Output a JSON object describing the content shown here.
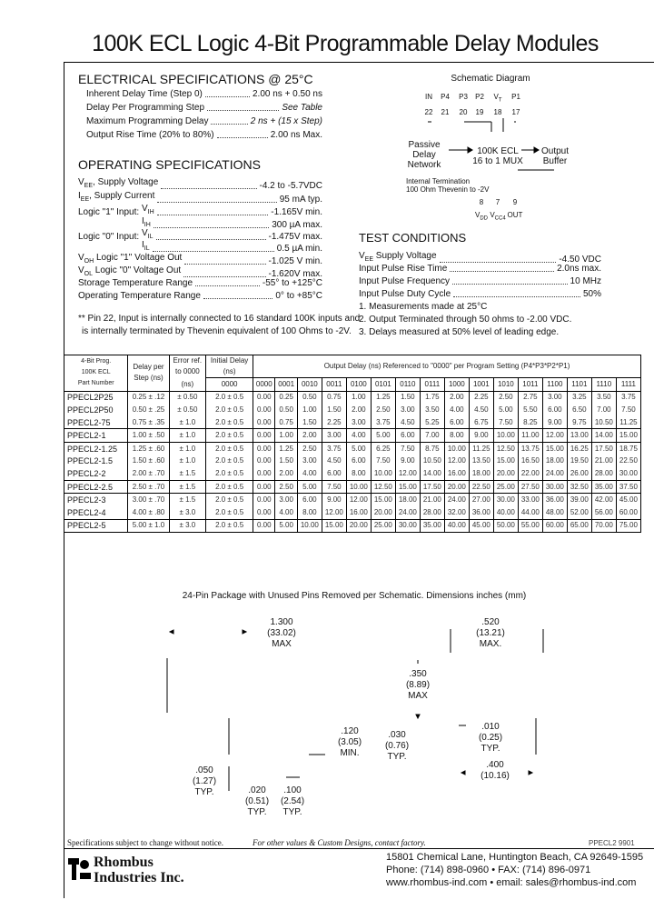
{
  "title": "100K ECL Logic 4-Bit Programmable Delay Modules",
  "electrical": {
    "heading": "ELECTRICAL SPECIFICATIONS @ 25°C",
    "items": [
      {
        "label": "Inherent Delay Time (Step 0)",
        "value": "2.00 ns + 0.50 ns"
      },
      {
        "label": "Delay Per Programming Step",
        "value": "See Table"
      },
      {
        "label": "Maximum Programming Delay",
        "value": "2 ns  + (15 x Step)"
      },
      {
        "label": "Output Rise Time (20% to 80%)",
        "value": "2.00 ns Max."
      }
    ]
  },
  "operating": {
    "heading": "OPERATING SPECIFICATIONS",
    "items": [
      {
        "label": "V",
        "sub": "EE",
        "label2": ", Supply Voltage",
        "value": "-4.2 to  -5.7VDC"
      },
      {
        "label": "I",
        "sub": "EE",
        "label2": ", Supply Current",
        "value": "95 mA typ."
      },
      {
        "label": "Logic \"1\" Input:",
        "param": "V",
        "psub": "IH",
        "value": "-1.165V min."
      },
      {
        "label": "",
        "param": "I",
        "psub": "IH",
        "value": "300 µA max."
      },
      {
        "label": "Logic \"0\" Input:",
        "param": "V",
        "psub": "IL",
        "value": "-1.475V max."
      },
      {
        "label": "",
        "param": "I",
        "psub": "IL",
        "value": "0.5 µA min."
      },
      {
        "label": "V",
        "sub": "OH",
        "label2": " Logic \"1\" Voltage Out",
        "value": "-1.025 V min."
      },
      {
        "label": "V",
        "sub": "OL",
        "label2": " Logic \"0\" Voltage Out",
        "value": "-1.620V max."
      },
      {
        "label": "Storage Temperature Range",
        "value": "-55° to +125°C"
      },
      {
        "label": "Operating Temperature Range",
        "value": "0° to +85°C"
      }
    ],
    "footnote1": "** Pin 22, Input is internally connected to 16 standard 100K inputs and",
    "footnote2": "is internally terminated by Thevenin equivalent of 100 Ohms to -2V."
  },
  "schematic": {
    "title": "Schematic Diagram",
    "top_pins": [
      {
        "name": "IN",
        "num": "22"
      },
      {
        "name": "P4",
        "num": "21"
      },
      {
        "name": "P3",
        "num": "20"
      },
      {
        "name": "P2",
        "num": "19"
      },
      {
        "name": "V",
        "sub": "T",
        "num": "18"
      },
      {
        "name": "P1",
        "num": "17"
      }
    ],
    "passive": [
      "Passive",
      "Delay",
      "Network"
    ],
    "mux": [
      "100K ECL",
      "16 to 1 MUX"
    ],
    "buffer": [
      "Output",
      "Buffer"
    ],
    "termination": [
      "Internal Termination",
      "100 Ohm Thevenin to -2V"
    ],
    "bottom_pins": [
      {
        "name": "V",
        "sub": "DD",
        "num": "8"
      },
      {
        "name": "V",
        "sub": "CC4",
        "num": "7"
      },
      {
        "name": "OUT",
        "num": "9"
      }
    ]
  },
  "test": {
    "heading": "TEST CONDITIONS",
    "items": [
      {
        "label": "V",
        "sub": "EE",
        "label2": "  Supply Voltage",
        "value": "-4.50 VDC"
      },
      {
        "label": "Input Pulse Rise Time",
        "value": "2.0ns max."
      },
      {
        "label": "Input Pulse Frequency",
        "value": "10 MHz"
      },
      {
        "label": "Input Pulse Duty Cycle",
        "value": "50%"
      }
    ],
    "notes": [
      "1.  Measurements made at 25°C",
      "2.  Output Terminated through 50 ohms to -2.00 VDC.",
      "3.  Delays measured at 50% level of leading edge."
    ]
  },
  "table": {
    "h_part": [
      "4-Bit Prog.",
      "100K ECL",
      "Part Number"
    ],
    "h_step": [
      "Delay per",
      "Step (ns)"
    ],
    "h_err": [
      "Error ref.",
      "to 0000",
      "(ns)"
    ],
    "h_init": [
      "Initial Delay",
      "(ns)",
      "0000"
    ],
    "h_output": "Output Delay (ns) Referenced to \"0000\" per Program Setting  (P4*P3*P2*P1)",
    "codes": [
      "0000",
      "0001",
      "0010",
      "0011",
      "0100",
      "0101",
      "0110",
      "0111",
      "1000",
      "1001",
      "1010",
      "1011",
      "1100",
      "1101",
      "1110",
      "1111"
    ],
    "rows": [
      {
        "part": "PPECL2P25",
        "step": "0.25 ± .12",
        "err": "± 0.50",
        "init": "2.0 ± 0.5",
        "vals": [
          "0.00",
          "0.25",
          "0.50",
          "0.75",
          "1.00",
          "1.25",
          "1.50",
          "1.75",
          "2.00",
          "2.25",
          "2.50",
          "2.75",
          "3.00",
          "3.25",
          "3.50",
          "3.75"
        ]
      },
      {
        "part": "PPECL2P50",
        "step": "0.50 ± .25",
        "err": "± 0.50",
        "init": "2.0 ± 0.5",
        "vals": [
          "0.00",
          "0.50",
          "1.00",
          "1.50",
          "2.00",
          "2.50",
          "3.00",
          "3.50",
          "4.00",
          "4.50",
          "5.00",
          "5.50",
          "6.00",
          "6.50",
          "7.00",
          "7.50"
        ]
      },
      {
        "part": "PPECL2-75",
        "step": "0.75 ± .35",
        "err": "± 1.0",
        "init": "2.0 ± 0.5",
        "vals": [
          "0.00",
          "0.75",
          "1.50",
          "2.25",
          "3.00",
          "3.75",
          "4.50",
          "5.25",
          "6.00",
          "6.75",
          "7.50",
          "8.25",
          "9.00",
          "9.75",
          "10.50",
          "11.25"
        ]
      },
      {
        "part": "PPECL2-1",
        "step": "1.00 ± .50",
        "err": "± 1.0",
        "init": "2.0 ± 0.5",
        "vals": [
          "0.00",
          "1.00",
          "2.00",
          "3.00",
          "4.00",
          "5.00",
          "6.00",
          "7.00",
          "8.00",
          "9.00",
          "10.00",
          "11.00",
          "12.00",
          "13.00",
          "14.00",
          "15.00"
        ]
      },
      {
        "part": "PPECL2-1.25",
        "step": "1.25 ± .60",
        "err": "± 1.0",
        "init": "2.0 ± 0.5",
        "vals": [
          "0.00",
          "1.25",
          "2.50",
          "3.75",
          "5.00",
          "6.25",
          "7.50",
          "8.75",
          "10.00",
          "11.25",
          "12.50",
          "13.75",
          "15.00",
          "16.25",
          "17.50",
          "18.75"
        ]
      },
      {
        "part": "PPECL2-1.5",
        "step": "1.50 ± .60",
        "err": "± 1.0",
        "init": "2.0 ± 0.5",
        "vals": [
          "0.00",
          "1.50",
          "3.00",
          "4.50",
          "6.00",
          "7.50",
          "9.00",
          "10.50",
          "12.00",
          "13.50",
          "15.00",
          "16.50",
          "18.00",
          "19.50",
          "21.00",
          "22.50"
        ]
      },
      {
        "part": "PPECL2-2",
        "step": "2.00 ± .70",
        "err": "± 1.5",
        "init": "2.0 ± 0.5",
        "vals": [
          "0.00",
          "2.00",
          "4.00",
          "6.00",
          "8.00",
          "10.00",
          "12.00",
          "14.00",
          "16.00",
          "18.00",
          "20.00",
          "22.00",
          "24.00",
          "26.00",
          "28.00",
          "30.00"
        ]
      },
      {
        "part": "PPECL2-2.5",
        "step": "2.50 ± .70",
        "err": "± 1.5",
        "init": "2.0 ± 0.5",
        "vals": [
          "0.00",
          "2.50",
          "5.00",
          "7.50",
          "10.00",
          "12.50",
          "15.00",
          "17.50",
          "20.00",
          "22.50",
          "25.00",
          "27.50",
          "30.00",
          "32.50",
          "35.00",
          "37.50"
        ]
      },
      {
        "part": "PPECL2-3",
        "step": "3.00 ± .70",
        "err": "± 1.5",
        "init": "2.0 ± 0.5",
        "vals": [
          "0.00",
          "3.00",
          "6.00",
          "9.00",
          "12.00",
          "15.00",
          "18.00",
          "21.00",
          "24.00",
          "27.00",
          "30.00",
          "33.00",
          "36.00",
          "39.00",
          "42.00",
          "45.00"
        ]
      },
      {
        "part": "PPECL2-4",
        "step": "4.00 ± .80",
        "err": "± 3.0",
        "init": "2.0 ± 0.5",
        "vals": [
          "0.00",
          "4.00",
          "8.00",
          "12.00",
          "16.00",
          "20.00",
          "24.00",
          "28.00",
          "32.00",
          "36.00",
          "40.00",
          "44.00",
          "48.00",
          "52.00",
          "56.00",
          "60.00"
        ]
      },
      {
        "part": "PPECL2-5",
        "step": "5.00 ± 1.0",
        "err": "± 3.0",
        "init": "2.0 ± 0.5",
        "vals": [
          "0.00",
          "5.00",
          "10.00",
          "15.00",
          "20.00",
          "25.00",
          "30.00",
          "35.00",
          "40.00",
          "45.00",
          "50.00",
          "55.00",
          "60.00",
          "65.00",
          "70.00",
          "75.00"
        ]
      }
    ],
    "group_ends": [
      2,
      3,
      6,
      7,
      9,
      10
    ]
  },
  "package": {
    "caption": "24-Pin Package with Unused Pins Removed per Schematic.  Dimensions inches (mm)",
    "length": [
      "1.300",
      "(33.02)",
      "MAX"
    ],
    "width": [
      ".520",
      "(13.21)",
      "MAX."
    ],
    "height": [
      ".350",
      "(8.89)",
      "MAX"
    ],
    "lead_len": [
      ".120",
      "(3.05)",
      "MIN."
    ],
    "standoff": [
      ".030",
      "(0.76)",
      "TYP."
    ],
    "lead_thick": [
      ".010",
      "(0.25)",
      "TYP."
    ],
    "row_spacing": [
      ".400",
      "(10.16)"
    ],
    "shoulder": [
      ".050",
      "(1.27)",
      "TYP."
    ],
    "lead_w": [
      ".020",
      "(0.51)",
      "TYP."
    ],
    "pitch": [
      ".100",
      "(2.54)",
      "TYP."
    ]
  },
  "footer": {
    "notice": "Specifications subject to change without notice.",
    "custom": "For other values & Custom Designs, contact factory.",
    "doc_id": "PPECL2  9901",
    "company": [
      "Rhombus",
      "Industries Inc."
    ],
    "address": "15801 Chemical Lane, Huntington Beach, CA 92649-1595",
    "phone": "Phone:  (714) 898-0960  •  FAX:  (714) 896-0971",
    "web": "www.rhombus-ind.com • email:  sales@rhombus-ind.com"
  }
}
